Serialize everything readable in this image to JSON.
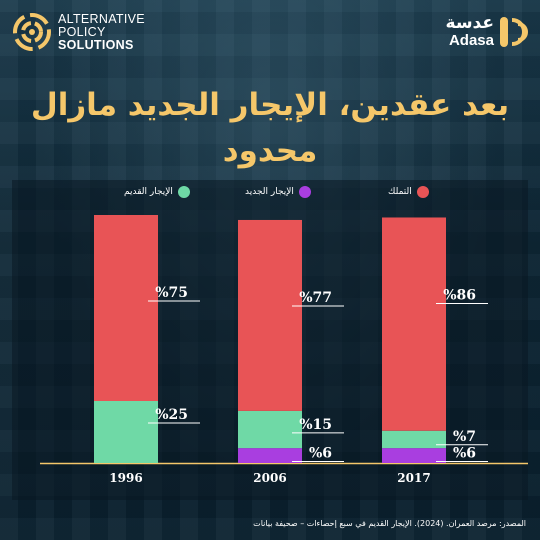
{
  "brand": {
    "aps_line1": "ALTERNATIVE",
    "aps_line2": "POLICY",
    "aps_line3": "SOLUTIONS",
    "adasa_ar": "عدسة",
    "adasa_en": "Adasa"
  },
  "title": "بعد عقدين، الإيجار الجديد مازال محدود",
  "colors": {
    "ownership": "#e85456",
    "new_rent": "#a93ee0",
    "old_rent": "#6fd9a6",
    "title": "#f5c76a"
  },
  "legend": [
    {
      "label": "التملك",
      "color": "#e85456"
    },
    {
      "label": "الإيجار الجديد",
      "color": "#a93ee0"
    },
    {
      "label": "الإيجار القديم",
      "color": "#6fd9a6"
    }
  ],
  "source": "المصدر: مرصد العمران. (2024). الإيجار القديم في سبع إحصاءات – صحيفة بيانات",
  "chart_data": {
    "type": "bar",
    "stacked": true,
    "categories": [
      "1996",
      "2006",
      "2017"
    ],
    "series": [
      {
        "name": "الإيجار الجديد",
        "values": [
          0,
          6,
          6
        ],
        "labels": [
          "",
          "%6",
          "%6"
        ]
      },
      {
        "name": "الإيجار القديم",
        "values": [
          25,
          15,
          7
        ],
        "labels": [
          "%25",
          "%15",
          "%7"
        ]
      },
      {
        "name": "التملك",
        "values": [
          75,
          77,
          86
        ],
        "labels": [
          "%75",
          "%77",
          "%86"
        ]
      }
    ],
    "ylim": [
      0,
      100
    ]
  }
}
